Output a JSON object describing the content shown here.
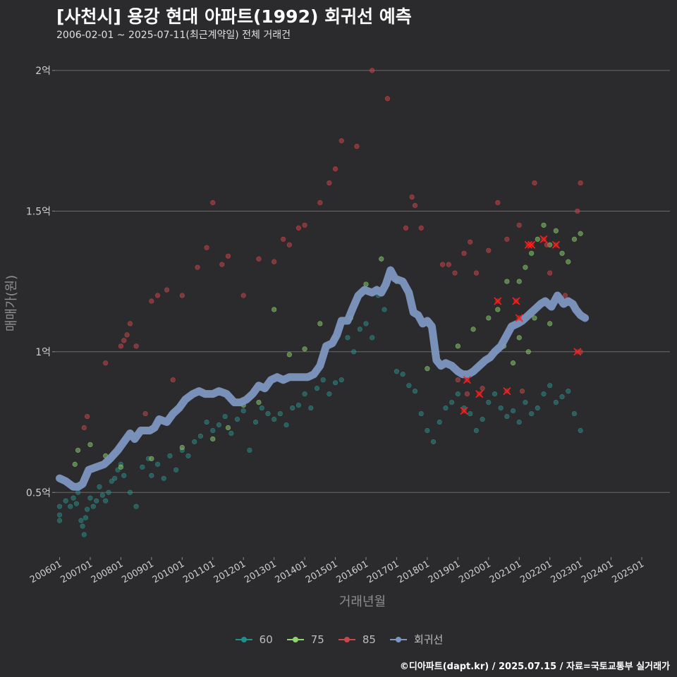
{
  "chart_data": {
    "type": "scatter",
    "title": "[사천시] 용강 현대 아파트(1992) 회귀선 예측",
    "subtitle": "2006-02-01 ~ 2025-07-11(최근계약일) 전체 거래건",
    "xlabel": "거래년월",
    "ylabel": "매매가(원)",
    "caption": "©디아파트(dapt.kr) / 2025.07.15 / 자료=국토교통부 실거래가",
    "x_ticks": [
      "200601",
      "200701",
      "200801",
      "200901",
      "201001",
      "201101",
      "201201",
      "201301",
      "201401",
      "201501",
      "201601",
      "201701",
      "201801",
      "201901",
      "202001",
      "202101",
      "202201",
      "202301",
      "202401",
      "202501"
    ],
    "y_ticks": [
      {
        "value": 0.5,
        "label": "0.5억"
      },
      {
        "value": 1.0,
        "label": "1억"
      },
      {
        "value": 1.5,
        "label": "1.5억"
      },
      {
        "value": 2.0,
        "label": "2억"
      }
    ],
    "xlim": [
      2005.85,
      2025.92
    ],
    "ylim": [
      0.27,
      2.1
    ],
    "y_unit": "억원",
    "legend": [
      {
        "name": "60",
        "color": "#1f8f8a"
      },
      {
        "name": "75",
        "color": "#8fd46e"
      },
      {
        "name": "85",
        "color": "#c8474a"
      },
      {
        "name": "회귀선",
        "color": "#7d96c0"
      }
    ],
    "colors": {
      "60": "#2a8a86",
      "75": "#86c86a",
      "85": "#c24649",
      "regression": "#7d96c0",
      "highlight": "#ff1f1f"
    },
    "regression": [
      [
        2006.0,
        0.55
      ],
      [
        2006.2,
        0.54
      ],
      [
        2006.45,
        0.52
      ],
      [
        2006.6,
        0.52
      ],
      [
        2006.75,
        0.53
      ],
      [
        2006.95,
        0.58
      ],
      [
        2007.2,
        0.59
      ],
      [
        2007.45,
        0.6
      ],
      [
        2007.65,
        0.62
      ],
      [
        2007.9,
        0.65
      ],
      [
        2008.1,
        0.68
      ],
      [
        2008.3,
        0.71
      ],
      [
        2008.45,
        0.69
      ],
      [
        2008.65,
        0.72
      ],
      [
        2008.95,
        0.72
      ],
      [
        2009.1,
        0.73
      ],
      [
        2009.25,
        0.76
      ],
      [
        2009.5,
        0.75
      ],
      [
        2009.7,
        0.78
      ],
      [
        2009.9,
        0.8
      ],
      [
        2010.1,
        0.83
      ],
      [
        2010.35,
        0.85
      ],
      [
        2010.55,
        0.86
      ],
      [
        2010.75,
        0.85
      ],
      [
        2011.0,
        0.85
      ],
      [
        2011.2,
        0.86
      ],
      [
        2011.45,
        0.85
      ],
      [
        2011.7,
        0.82
      ],
      [
        2011.9,
        0.82
      ],
      [
        2012.1,
        0.83
      ],
      [
        2012.3,
        0.85
      ],
      [
        2012.5,
        0.88
      ],
      [
        2012.7,
        0.87
      ],
      [
        2012.9,
        0.9
      ],
      [
        2013.1,
        0.91
      ],
      [
        2013.3,
        0.9
      ],
      [
        2013.5,
        0.91
      ],
      [
        2013.75,
        0.91
      ],
      [
        2013.95,
        0.91
      ],
      [
        2014.1,
        0.91
      ],
      [
        2014.3,
        0.92
      ],
      [
        2014.5,
        0.95
      ],
      [
        2014.7,
        1.02
      ],
      [
        2014.9,
        1.03
      ],
      [
        2015.05,
        1.06
      ],
      [
        2015.2,
        1.11
      ],
      [
        2015.4,
        1.11
      ],
      [
        2015.55,
        1.15
      ],
      [
        2015.75,
        1.2
      ],
      [
        2015.95,
        1.22
      ],
      [
        2016.2,
        1.21
      ],
      [
        2016.35,
        1.22
      ],
      [
        2016.5,
        1.21
      ],
      [
        2016.65,
        1.24
      ],
      [
        2016.8,
        1.29
      ],
      [
        2016.95,
        1.26
      ],
      [
        2017.2,
        1.25
      ],
      [
        2017.4,
        1.21
      ],
      [
        2017.55,
        1.14
      ],
      [
        2017.7,
        1.13
      ],
      [
        2017.85,
        1.1
      ],
      [
        2018.0,
        1.11
      ],
      [
        2018.15,
        1.09
      ],
      [
        2018.3,
        0.97
      ],
      [
        2018.45,
        0.95
      ],
      [
        2018.6,
        0.96
      ],
      [
        2018.8,
        0.95
      ],
      [
        2019.0,
        0.93
      ],
      [
        2019.15,
        0.92
      ],
      [
        2019.35,
        0.92
      ],
      [
        2019.5,
        0.93
      ],
      [
        2019.7,
        0.95
      ],
      [
        2019.9,
        0.97
      ],
      [
        2020.05,
        0.98
      ],
      [
        2020.2,
        1.0
      ],
      [
        2020.4,
        1.02
      ],
      [
        2020.6,
        1.06
      ],
      [
        2020.75,
        1.09
      ],
      [
        2020.95,
        1.1
      ],
      [
        2021.1,
        1.11
      ],
      [
        2021.3,
        1.13
      ],
      [
        2021.5,
        1.15
      ],
      [
        2021.7,
        1.17
      ],
      [
        2021.85,
        1.18
      ],
      [
        2022.05,
        1.16
      ],
      [
        2022.25,
        1.2
      ],
      [
        2022.45,
        1.17
      ],
      [
        2022.6,
        1.18
      ],
      [
        2022.75,
        1.17
      ],
      [
        2022.85,
        1.15
      ],
      [
        2023.0,
        1.13
      ],
      [
        2023.15,
        1.12
      ]
    ],
    "points_60": [
      [
        2006,
        0.42
      ],
      [
        2006,
        0.4
      ],
      [
        2006,
        0.45
      ],
      [
        2006.2,
        0.47
      ],
      [
        2006.35,
        0.45
      ],
      [
        2006.45,
        0.48
      ],
      [
        2006.55,
        0.46
      ],
      [
        2006.6,
        0.5
      ],
      [
        2006.7,
        0.4
      ],
      [
        2006.75,
        0.38
      ],
      [
        2006.8,
        0.35
      ],
      [
        2006.85,
        0.41
      ],
      [
        2006.9,
        0.44
      ],
      [
        2007.0,
        0.48
      ],
      [
        2007.1,
        0.45
      ],
      [
        2007.2,
        0.47
      ],
      [
        2007.3,
        0.52
      ],
      [
        2007.4,
        0.49
      ],
      [
        2007.5,
        0.47
      ],
      [
        2007.6,
        0.5
      ],
      [
        2007.7,
        0.54
      ],
      [
        2007.8,
        0.55
      ],
      [
        2007.9,
        0.58
      ],
      [
        2008.0,
        0.6
      ],
      [
        2008.1,
        0.56
      ],
      [
        2008.3,
        0.5
      ],
      [
        2008.5,
        0.45
      ],
      [
        2008.7,
        0.59
      ],
      [
        2008.9,
        0.62
      ],
      [
        2009.0,
        0.56
      ],
      [
        2009.2,
        0.6
      ],
      [
        2009.4,
        0.55
      ],
      [
        2009.6,
        0.63
      ],
      [
        2009.8,
        0.58
      ],
      [
        2010.0,
        0.65
      ],
      [
        2010.2,
        0.63
      ],
      [
        2010.4,
        0.68
      ],
      [
        2010.6,
        0.7
      ],
      [
        2010.8,
        0.75
      ],
      [
        2011.0,
        0.72
      ],
      [
        2011.2,
        0.74
      ],
      [
        2011.4,
        0.77
      ],
      [
        2011.6,
        0.71
      ],
      [
        2011.8,
        0.76
      ],
      [
        2012.0,
        0.79
      ],
      [
        2012.2,
        0.65
      ],
      [
        2012.4,
        0.75
      ],
      [
        2012.6,
        0.8
      ],
      [
        2012.8,
        0.78
      ],
      [
        2013.0,
        0.76
      ],
      [
        2013.2,
        0.78
      ],
      [
        2013.4,
        0.74
      ],
      [
        2013.6,
        0.8
      ],
      [
        2013.8,
        0.81
      ],
      [
        2014.0,
        0.85
      ],
      [
        2014.2,
        0.8
      ],
      [
        2014.4,
        0.87
      ],
      [
        2014.6,
        0.9
      ],
      [
        2014.8,
        0.85
      ],
      [
        2015.0,
        0.89
      ],
      [
        2015.2,
        0.9
      ],
      [
        2015.4,
        1.05
      ],
      [
        2015.6,
        1.0
      ],
      [
        2015.8,
        1.08
      ],
      [
        2016.0,
        1.1
      ],
      [
        2016.2,
        1.05
      ],
      [
        2016.4,
        1.2
      ],
      [
        2016.6,
        1.15
      ],
      [
        2017.0,
        0.93
      ],
      [
        2017.2,
        0.92
      ],
      [
        2017.4,
        0.88
      ],
      [
        2017.6,
        0.86
      ],
      [
        2017.8,
        0.78
      ],
      [
        2018.0,
        0.72
      ],
      [
        2018.2,
        0.68
      ],
      [
        2018.4,
        0.75
      ],
      [
        2018.6,
        0.8
      ],
      [
        2018.8,
        0.82
      ],
      [
        2019.0,
        0.85
      ],
      [
        2019.2,
        0.8
      ],
      [
        2019.4,
        0.78
      ],
      [
        2019.6,
        0.72
      ],
      [
        2019.8,
        0.76
      ],
      [
        2020.0,
        0.82
      ],
      [
        2020.2,
        0.85
      ],
      [
        2020.4,
        0.8
      ],
      [
        2020.6,
        0.77
      ],
      [
        2020.8,
        0.79
      ],
      [
        2021.0,
        0.75
      ],
      [
        2021.2,
        0.82
      ],
      [
        2021.4,
        0.78
      ],
      [
        2021.6,
        0.8
      ],
      [
        2021.8,
        0.85
      ],
      [
        2022.0,
        0.88
      ],
      [
        2022.2,
        0.82
      ],
      [
        2022.4,
        0.84
      ],
      [
        2022.6,
        0.86
      ],
      [
        2022.8,
        0.78
      ],
      [
        2023.0,
        0.72
      ]
    ],
    "points_75": [
      [
        2006.5,
        0.6
      ],
      [
        2006.6,
        0.65
      ],
      [
        2007.0,
        0.67
      ],
      [
        2007.5,
        0.63
      ],
      [
        2008.0,
        0.59
      ],
      [
        2009.0,
        0.62
      ],
      [
        2010.0,
        0.66
      ],
      [
        2011.0,
        0.69
      ],
      [
        2011.5,
        0.73
      ],
      [
        2012.0,
        0.81
      ],
      [
        2012.5,
        0.82
      ],
      [
        2013.0,
        1.15
      ],
      [
        2013.5,
        0.99
      ],
      [
        2014.0,
        1.01
      ],
      [
        2014.5,
        1.1
      ],
      [
        2015.0,
        1.05
      ],
      [
        2015.5,
        1.12
      ],
      [
        2016.0,
        1.24
      ],
      [
        2016.5,
        1.33
      ],
      [
        2017.0,
        1.25
      ],
      [
        2018.0,
        0.94
      ],
      [
        2019.0,
        1.02
      ],
      [
        2019.5,
        1.08
      ],
      [
        2020.0,
        1.12
      ],
      [
        2020.3,
        1.15
      ],
      [
        2020.6,
        1.25
      ],
      [
        2021.0,
        1.25
      ],
      [
        2021.2,
        1.3
      ],
      [
        2021.4,
        1.35
      ],
      [
        2021.6,
        1.4
      ],
      [
        2021.8,
        1.45
      ],
      [
        2022.0,
        1.38
      ],
      [
        2022.2,
        1.43
      ],
      [
        2022.4,
        1.35
      ],
      [
        2022.6,
        1.32
      ],
      [
        2022.8,
        1.4
      ],
      [
        2023.0,
        1.42
      ],
      [
        2021.0,
        1.05
      ],
      [
        2021.5,
        1.12
      ],
      [
        2022.0,
        1.1
      ],
      [
        2020.5,
        1.02
      ],
      [
        2021.3,
        1.0
      ],
      [
        2020.8,
        0.96
      ]
    ],
    "points_85": [
      [
        2006.8,
        0.73
      ],
      [
        2006.9,
        0.77
      ],
      [
        2007.5,
        0.96
      ],
      [
        2008.0,
        1.02
      ],
      [
        2008.1,
        1.04
      ],
      [
        2008.2,
        1.06
      ],
      [
        2008.3,
        1.1
      ],
      [
        2008.5,
        1.02
      ],
      [
        2008.8,
        0.78
      ],
      [
        2009.0,
        1.18
      ],
      [
        2009.2,
        1.2
      ],
      [
        2009.5,
        1.22
      ],
      [
        2009.7,
        0.9
      ],
      [
        2010.0,
        1.2
      ],
      [
        2010.5,
        1.3
      ],
      [
        2010.8,
        1.37
      ],
      [
        2011.0,
        1.53
      ],
      [
        2011.3,
        1.31
      ],
      [
        2011.5,
        1.34
      ],
      [
        2012.0,
        1.2
      ],
      [
        2012.5,
        1.33
      ],
      [
        2013.0,
        1.32
      ],
      [
        2013.3,
        1.4
      ],
      [
        2013.5,
        1.38
      ],
      [
        2013.8,
        1.44
      ],
      [
        2014.0,
        1.45
      ],
      [
        2014.5,
        1.53
      ],
      [
        2014.8,
        1.6
      ],
      [
        2015.0,
        1.65
      ],
      [
        2015.2,
        1.75
      ],
      [
        2015.7,
        1.73
      ],
      [
        2016.2,
        2.0
      ],
      [
        2016.7,
        1.9
      ],
      [
        2017.5,
        1.55
      ],
      [
        2017.6,
        1.52
      ],
      [
        2017.3,
        1.44
      ],
      [
        2017.8,
        1.44
      ],
      [
        2018.5,
        1.31
      ],
      [
        2018.7,
        1.31
      ],
      [
        2018.9,
        1.28
      ],
      [
        2019.2,
        1.35
      ],
      [
        2019.4,
        1.39
      ],
      [
        2019.6,
        1.28
      ],
      [
        2020.0,
        1.36
      ],
      [
        2020.3,
        1.53
      ],
      [
        2020.6,
        1.4
      ],
      [
        2021.0,
        1.45
      ],
      [
        2021.5,
        1.6
      ],
      [
        2022.0,
        1.28
      ],
      [
        2022.5,
        1.2
      ],
      [
        2023.0,
        1.6
      ],
      [
        2022.9,
        1.5
      ],
      [
        2019.0,
        0.9
      ],
      [
        2019.3,
        0.85
      ],
      [
        2019.8,
        0.87
      ],
      [
        2021.1,
        0.86
      ],
      [
        2021.9,
        1.38
      ],
      [
        2023.0,
        1.0
      ]
    ],
    "highlights": [
      [
        2019.2,
        0.79
      ],
      [
        2019.3,
        0.9
      ],
      [
        2019.7,
        0.85
      ],
      [
        2020.3,
        1.18
      ],
      [
        2020.6,
        0.86
      ],
      [
        2020.9,
        1.18
      ],
      [
        2021.0,
        1.12
      ],
      [
        2021.3,
        1.38
      ],
      [
        2021.4,
        1.38
      ],
      [
        2021.8,
        1.4
      ],
      [
        2022.2,
        1.38
      ],
      [
        2022.9,
        1.0
      ]
    ]
  }
}
